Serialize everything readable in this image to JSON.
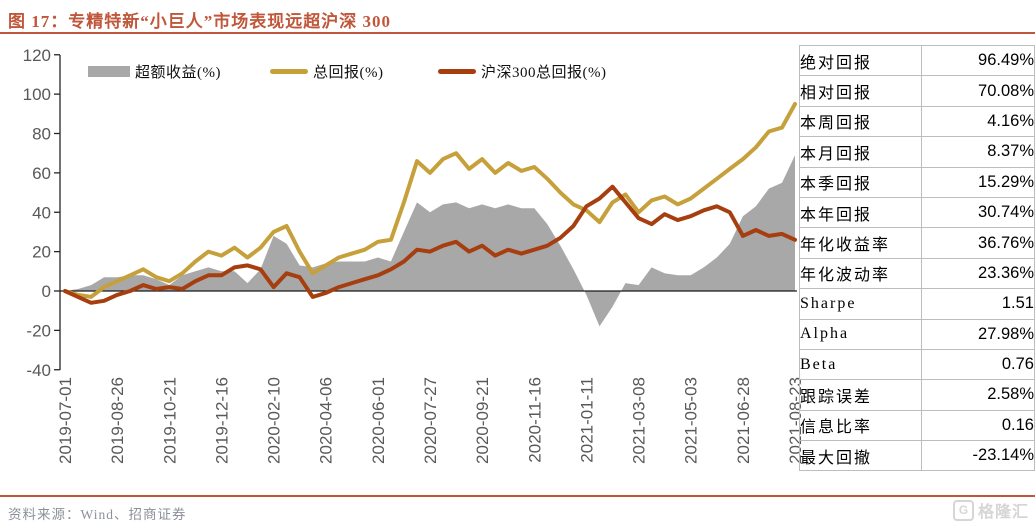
{
  "figure": {
    "title": "图 17：专精特新“小巨人”市场表现远超沪深 300",
    "source": "资料来源：Wind、招商证券",
    "watermark": "格隆汇",
    "watermark_icon": "G",
    "accent_color": "#c0573b"
  },
  "chart_data": {
    "type": "line",
    "title": "专精特新“小巨人”市场表现远超沪深300",
    "grid": false,
    "legend_position": "top",
    "ylim": [
      -40,
      120
    ],
    "y_ticks": [
      120,
      100,
      80,
      60,
      40,
      20,
      0,
      -20,
      -40
    ],
    "x_tick_labels": [
      "2019-07-01",
      "2019-08-26",
      "2019-10-21",
      "2019-12-16",
      "2020-02-10",
      "2020-04-06",
      "2020-06-01",
      "2020-07-27",
      "2020-09-21",
      "2020-11-16",
      "2021-01-11",
      "2021-03-08",
      "2021-05-03",
      "2021-06-28",
      "2021-08-23"
    ],
    "x_total_weeks": 112,
    "x_sample_step_weeks": 2,
    "axis_text_color": "#595959",
    "series": [
      {
        "name": "超额收益(%)",
        "type": "area",
        "color": "#a8a8a8",
        "values": [
          0,
          1,
          3,
          7,
          7,
          8,
          8,
          6,
          3,
          8,
          10,
          12,
          10,
          10,
          4,
          11,
          28,
          24,
          13,
          12,
          14,
          15,
          15,
          15,
          17,
          15,
          30,
          45,
          40,
          44,
          45,
          42,
          44,
          42,
          44,
          42,
          42,
          34,
          23,
          11,
          -2,
          -18,
          -8,
          4,
          3,
          12,
          9,
          8,
          8,
          12,
          17,
          24,
          38,
          43,
          52,
          55,
          69
        ]
      },
      {
        "name": "总回报(%)",
        "type": "line",
        "color": "#c6a03a",
        "values": [
          0,
          -2,
          -3,
          2,
          5,
          8,
          11,
          7,
          5,
          9,
          15,
          20,
          18,
          22,
          17,
          22,
          30,
          33,
          20,
          9,
          13,
          17,
          19,
          21,
          25,
          26,
          45,
          66,
          60,
          67,
          70,
          62,
          67,
          60,
          65,
          61,
          63,
          57,
          50,
          44,
          41,
          35,
          45,
          49,
          40,
          46,
          48,
          44,
          47,
          52,
          57,
          62,
          67,
          73,
          81,
          83,
          95
        ]
      },
      {
        "name": "沪深300总回报(%)",
        "type": "line",
        "color": "#a63e0f",
        "values": [
          0,
          -3,
          -6,
          -5,
          -2,
          0,
          3,
          1,
          2,
          1,
          5,
          8,
          8,
          12,
          13,
          11,
          2,
          9,
          7,
          -3,
          -1,
          2,
          4,
          6,
          8,
          11,
          15,
          21,
          20,
          23,
          25,
          20,
          23,
          18,
          21,
          19,
          21,
          23,
          27,
          33,
          43,
          47,
          53,
          45,
          37,
          34,
          39,
          36,
          38,
          41,
          43,
          40,
          28,
          31,
          28,
          29,
          26
        ]
      }
    ]
  },
  "stats_table": {
    "rows": [
      {
        "label": "绝对回报",
        "value": "96.49%"
      },
      {
        "label": "相对回报",
        "value": "70.08%"
      },
      {
        "label": "本周回报",
        "value": "4.16%"
      },
      {
        "label": "本月回报",
        "value": "8.37%"
      },
      {
        "label": "本季回报",
        "value": "15.29%"
      },
      {
        "label": "本年回报",
        "value": "30.74%"
      },
      {
        "label": "年化收益率",
        "value": "36.76%"
      },
      {
        "label": "年化波动率",
        "value": "23.36%"
      },
      {
        "label": "Sharpe",
        "value": "1.51"
      },
      {
        "label": "Alpha",
        "value": "27.98%"
      },
      {
        "label": "Beta",
        "value": "0.76"
      },
      {
        "label": "跟踪误差",
        "value": "2.58%"
      },
      {
        "label": "信息比率",
        "value": "0.16"
      },
      {
        "label": "最大回撤",
        "value": "-23.14%"
      }
    ]
  }
}
